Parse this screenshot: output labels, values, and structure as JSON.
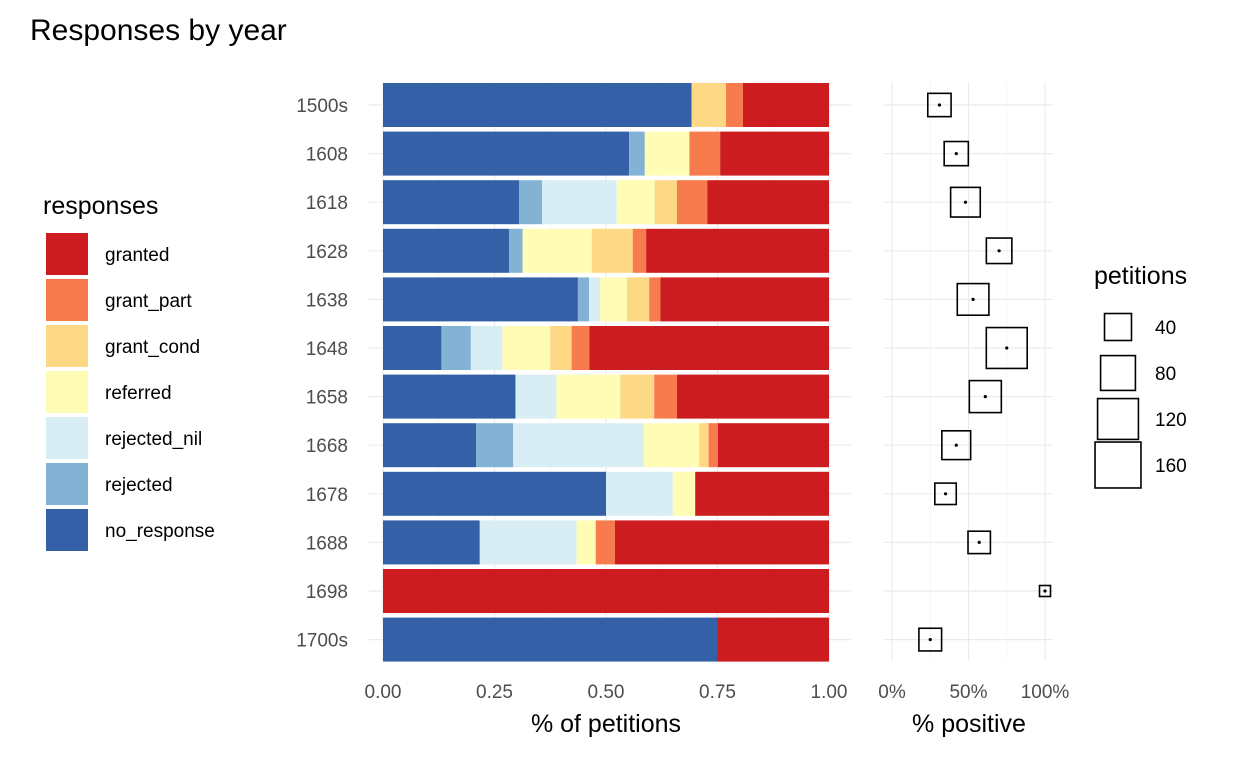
{
  "title": "Responses by year",
  "chart_data": [
    {
      "type": "bar",
      "orientation": "horizontal",
      "stacked": true,
      "xlabel": "% of petitions",
      "xlim": [
        0,
        1
      ],
      "x_ticks": [
        "0.00",
        "0.25",
        "0.50",
        "0.75",
        "1.00"
      ],
      "categories": [
        "1500s",
        "1608",
        "1618",
        "1628",
        "1638",
        "1648",
        "1658",
        "1668",
        "1678",
        "1688",
        "1698",
        "1700s"
      ],
      "legend_title": "responses",
      "legend_position": "left",
      "series": [
        {
          "name": "no_response",
          "color": "#3460A8",
          "values": [
            0.692,
            0.552,
            0.305,
            0.283,
            0.437,
            0.131,
            0.297,
            0.209,
            0.5,
            0.217,
            0.0,
            0.75
          ]
        },
        {
          "name": "rejected",
          "color": "#83B2D4",
          "values": [
            0.0,
            0.035,
            0.052,
            0.03,
            0.025,
            0.066,
            0.0,
            0.083,
            0.0,
            0.0,
            0.0,
            0.0
          ]
        },
        {
          "name": "rejected_nil",
          "color": "#D9EEF4",
          "values": [
            0.0,
            0.0,
            0.167,
            0.0,
            0.025,
            0.071,
            0.092,
            0.292,
            0.15,
            0.217,
            0.0,
            0.0
          ]
        },
        {
          "name": "referred",
          "color": "#FFFDB5",
          "values": [
            0.0,
            0.1,
            0.085,
            0.155,
            0.06,
            0.107,
            0.143,
            0.125,
            0.05,
            0.043,
            0.0,
            0.0
          ]
        },
        {
          "name": "grant_cond",
          "color": "#FDD985",
          "values": [
            0.077,
            0.0,
            0.05,
            0.092,
            0.05,
            0.048,
            0.076,
            0.021,
            0.0,
            0.0,
            0.0,
            0.0
          ]
        },
        {
          "name": "grant_part",
          "color": "#F87B4D",
          "values": [
            0.038,
            0.069,
            0.068,
            0.03,
            0.025,
            0.04,
            0.051,
            0.021,
            0.0,
            0.043,
            0.0,
            0.0
          ]
        },
        {
          "name": "granted",
          "color": "#CC1C1F",
          "values": [
            0.193,
            0.244,
            0.273,
            0.41,
            0.378,
            0.537,
            0.341,
            0.249,
            0.3,
            0.48,
            1.0,
            0.25
          ]
        }
      ]
    },
    {
      "type": "scatter",
      "xlabel": "% positive",
      "xlim": [
        0,
        1
      ],
      "x_ticks": [
        "0%",
        "50%",
        "100%"
      ],
      "categories": [
        "1500s",
        "1608",
        "1618",
        "1628",
        "1638",
        "1648",
        "1658",
        "1668",
        "1678",
        "1688",
        "1698",
        "1700s"
      ],
      "percent_positive": [
        0.31,
        0.42,
        0.48,
        0.7,
        0.53,
        0.75,
        0.61,
        0.42,
        0.35,
        0.57,
        1.0,
        0.25
      ],
      "petitions": [
        26,
        29,
        52,
        34,
        62,
        120,
        64,
        48,
        20,
        23,
        1,
        24
      ],
      "legend_title": "petitions",
      "legend_position": "right",
      "size_legend": [
        {
          "label": "40",
          "value": 40
        },
        {
          "label": "80",
          "value": 80
        },
        {
          "label": "120",
          "value": 120
        },
        {
          "label": "160",
          "value": 160
        }
      ]
    }
  ]
}
